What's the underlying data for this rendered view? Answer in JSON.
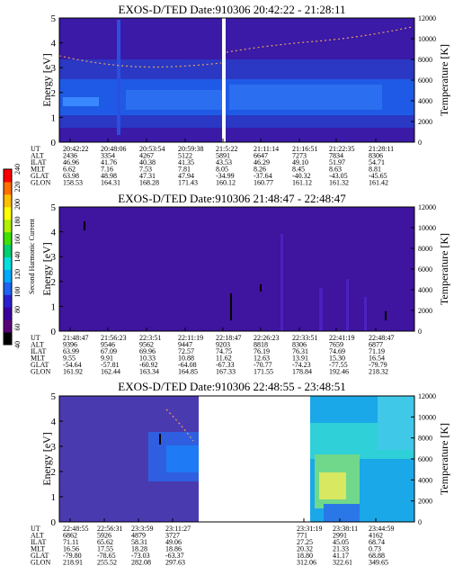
{
  "chart_data": [
    {
      "type": "heatmap",
      "title": "EXOS-D/TED   Date:910306  20:42:22 - 21:28:11",
      "ylabel": "Energy [eV]",
      "y2label": "Temperature [K]",
      "ylim": [
        0,
        5
      ],
      "yticks": [
        "0",
        "1",
        "2",
        "3",
        "4",
        "5"
      ],
      "y2lim": [
        0,
        12000
      ],
      "y2ticks": [
        "0",
        "2000",
        "4000",
        "6000",
        "8000",
        "10000",
        "12000"
      ],
      "orbit_labels": [
        "UT",
        "ALT",
        "ILAT",
        "MLT",
        "GLAT",
        "GLON"
      ],
      "orbit_columns": [
        [
          "20:42:22",
          "2436",
          "46.96",
          "6.62",
          "63.98",
          "158.53"
        ],
        [
          "20:48:06",
          "3354",
          "41.76",
          "7.16",
          "48.98",
          "164.31"
        ],
        [
          "20:53:54",
          "4267",
          "40.38",
          "7.53",
          "47.31",
          "168.28"
        ],
        [
          "20:59:38",
          "5122",
          "41.35",
          "7.81",
          "47.94",
          "171.43"
        ],
        [
          "21:5:22",
          "5891",
          "43.53",
          "8.05",
          "-34.99",
          "160.12"
        ],
        [
          "21:11:14",
          "6647",
          "46.29",
          "8.26",
          "-37.64",
          "160.77"
        ],
        [
          "21:16:51",
          "7273",
          "49.10",
          "8.45",
          "-40.32",
          "161.12"
        ],
        [
          "21:22:35",
          "7834",
          "51.97",
          "8.63",
          "-43.05",
          "161.32"
        ],
        [
          "21:28:11",
          "8306",
          "54.71",
          "8.81",
          "-45.65",
          "161.42"
        ]
      ]
    },
    {
      "type": "heatmap",
      "title": "EXOS-D/TED   Date:910306  21:48:47 - 22:48:47",
      "ylabel": "Energy [eV]",
      "y2label": "Temperature [K]",
      "ylim": [
        0,
        5
      ],
      "yticks": [
        "0",
        "1",
        "2",
        "3",
        "4",
        "5"
      ],
      "y2lim": [
        0,
        12000
      ],
      "y2ticks": [
        "0",
        "2000",
        "4000",
        "6000",
        "8000",
        "10000",
        "12000"
      ],
      "orbit_labels": [
        "UT",
        "ALT",
        "ILAT",
        "MLT",
        "GLAT",
        "GLON"
      ],
      "orbit_columns": [
        [
          "21:48:47",
          "9396",
          "63.99",
          "9.55",
          "-54.64",
          "161.92"
        ],
        [
          "21:56:23",
          "9546",
          "67.09",
          "9.91",
          "-57.81",
          "162.44"
        ],
        [
          "22:3:51",
          "9562",
          "69.96",
          "10.33",
          "-60.92",
          "163.34"
        ],
        [
          "22:11:19",
          "9447",
          "72.57",
          "10.88",
          "-64.08",
          "164.85"
        ],
        [
          "22:18:47",
          "9203",
          "74.75",
          "11.62",
          "-67.33",
          "167.33"
        ],
        [
          "22:26:23",
          "8818",
          "76.19",
          "12.63",
          "-70.77",
          "171.55"
        ],
        [
          "22:33:51",
          "8306",
          "76.31",
          "13.91",
          "-74.23",
          "178.84"
        ],
        [
          "22:41:19",
          "7659",
          "74.69",
          "15.30",
          "-77.55",
          "192.46"
        ],
        [
          "22:48:47",
          "6877",
          "71.19",
          "16.54",
          "-79.79",
          "218.32"
        ]
      ]
    },
    {
      "type": "heatmap",
      "title": "EXOS-D/TED   Date:910306  22:48:55 - 23:48:51",
      "ylabel": "Energy [eV]",
      "y2label": "Temperature [K]",
      "ylim": [
        0,
        5
      ],
      "yticks": [
        "0",
        "1",
        "2",
        "3",
        "4",
        "5"
      ],
      "y2lim": [
        0,
        12000
      ],
      "y2ticks": [
        "0",
        "2000",
        "4000",
        "6000",
        "8000",
        "10000",
        "12000"
      ],
      "orbit_labels": [
        "UT",
        "ALT",
        "ILAT",
        "MLT",
        "GLAT",
        "GLON"
      ],
      "orbit_columns": [
        [
          "22:48:55",
          "6862",
          "71.11",
          "16.56",
          "-79.80",
          "218.91"
        ],
        [
          "22:56:31",
          "5926",
          "65.62",
          "17.55",
          "-78.65",
          "255.52"
        ],
        [
          "23:3:59",
          "4879",
          "58.31",
          "18.28",
          "-73.03",
          "282.08"
        ],
        [
          "23:11:27",
          "3727",
          "49.06",
          "18.86",
          "-63.37",
          "297.63"
        ],
        [
          "23:31:19",
          "771",
          "27.25",
          "20.32",
          "18.80",
          "312.06"
        ],
        [
          "23:38:11",
          "2991",
          "45.05",
          "21.33",
          "41.17",
          "322.61"
        ],
        [
          "23:44:59",
          "4162",
          "68.74",
          "0.73",
          "68.88",
          "349.65"
        ]
      ]
    }
  ],
  "colorbar": {
    "label": "Second Harmonic Current",
    "ticks": [
      "40",
      "60",
      "80",
      "100",
      "120",
      "140",
      "160",
      "180",
      "200",
      "220",
      "240"
    ],
    "colors": [
      "#000000",
      "#5a0078",
      "#3c00a0",
      "#2b1fd0",
      "#1e64f0",
      "#00aaff",
      "#00e0e0",
      "#00d070",
      "#40e000",
      "#b0f000",
      "#ffff00",
      "#ffc000",
      "#ff7000",
      "#ff0000"
    ]
  }
}
